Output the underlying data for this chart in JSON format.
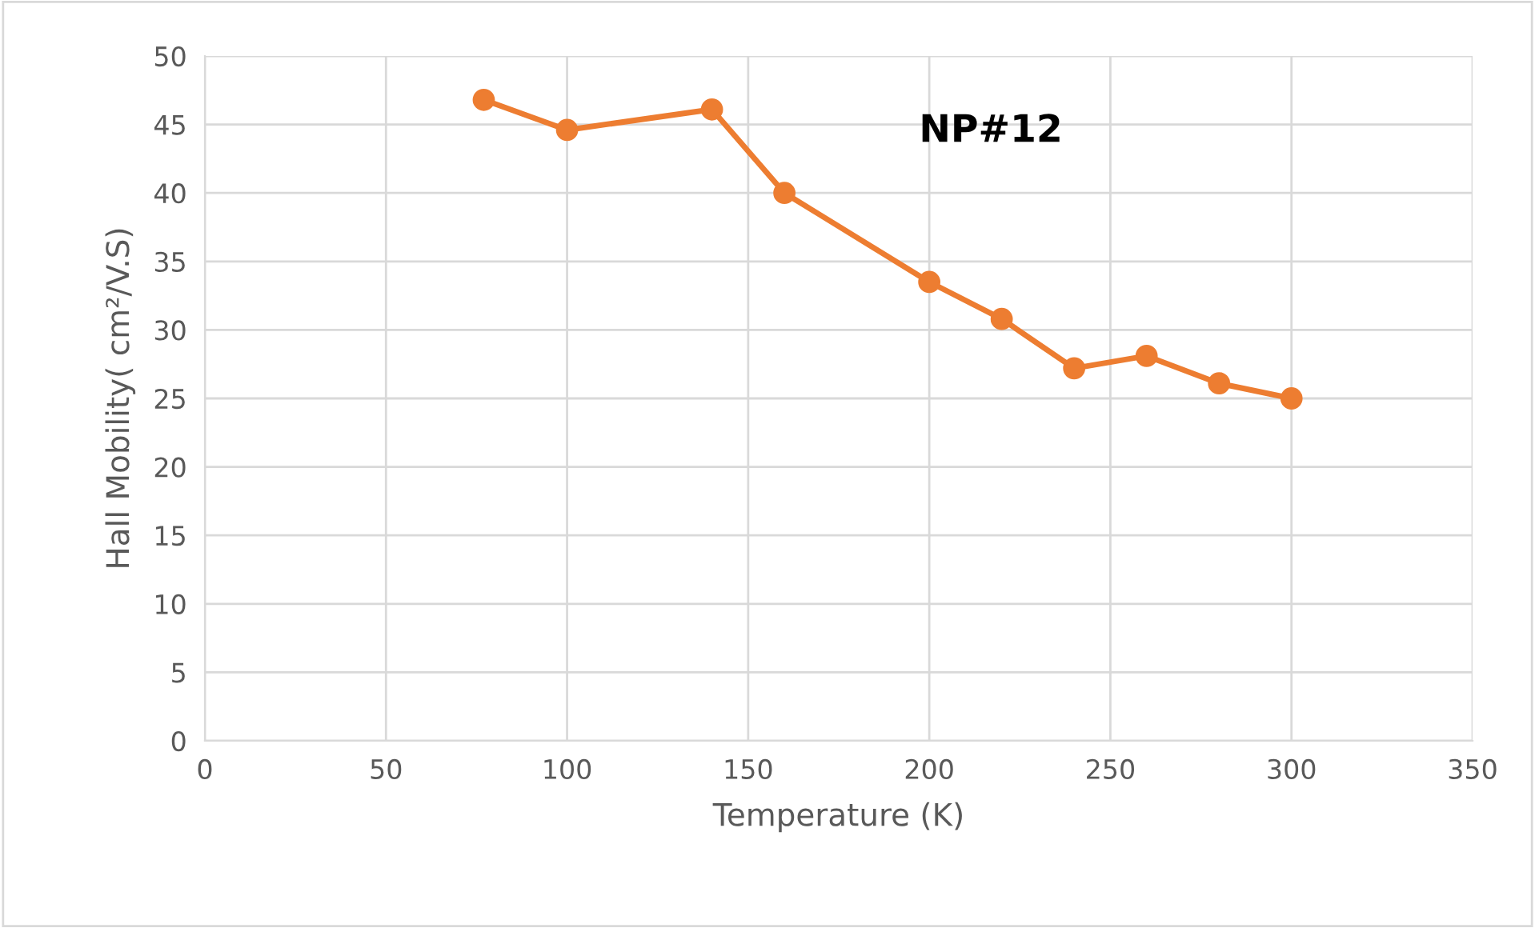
{
  "chart_data": {
    "type": "line",
    "xlabel": "Temperature (K)",
    "ylabel": "Hall Mobility( cm²/V.S)",
    "annotations": [
      "NP#12"
    ],
    "x": [
      77,
      100,
      140,
      160,
      200,
      220,
      240,
      260,
      280,
      300
    ],
    "series": [
      {
        "color": "#ed7d31",
        "values": [
          46.8,
          44.6,
          46.1,
          40.0,
          33.5,
          30.8,
          27.2,
          28.1,
          26.1,
          25.0
        ]
      }
    ],
    "xlim": [
      0,
      350
    ],
    "xticks": [
      0,
      50,
      100,
      150,
      200,
      250,
      300,
      350
    ],
    "ylim": [
      0,
      50
    ],
    "yticks": [
      0,
      5,
      10,
      15,
      20,
      25,
      30,
      35,
      40,
      45,
      50
    ],
    "grid": true,
    "marker": "circle",
    "line_style": "solid"
  }
}
